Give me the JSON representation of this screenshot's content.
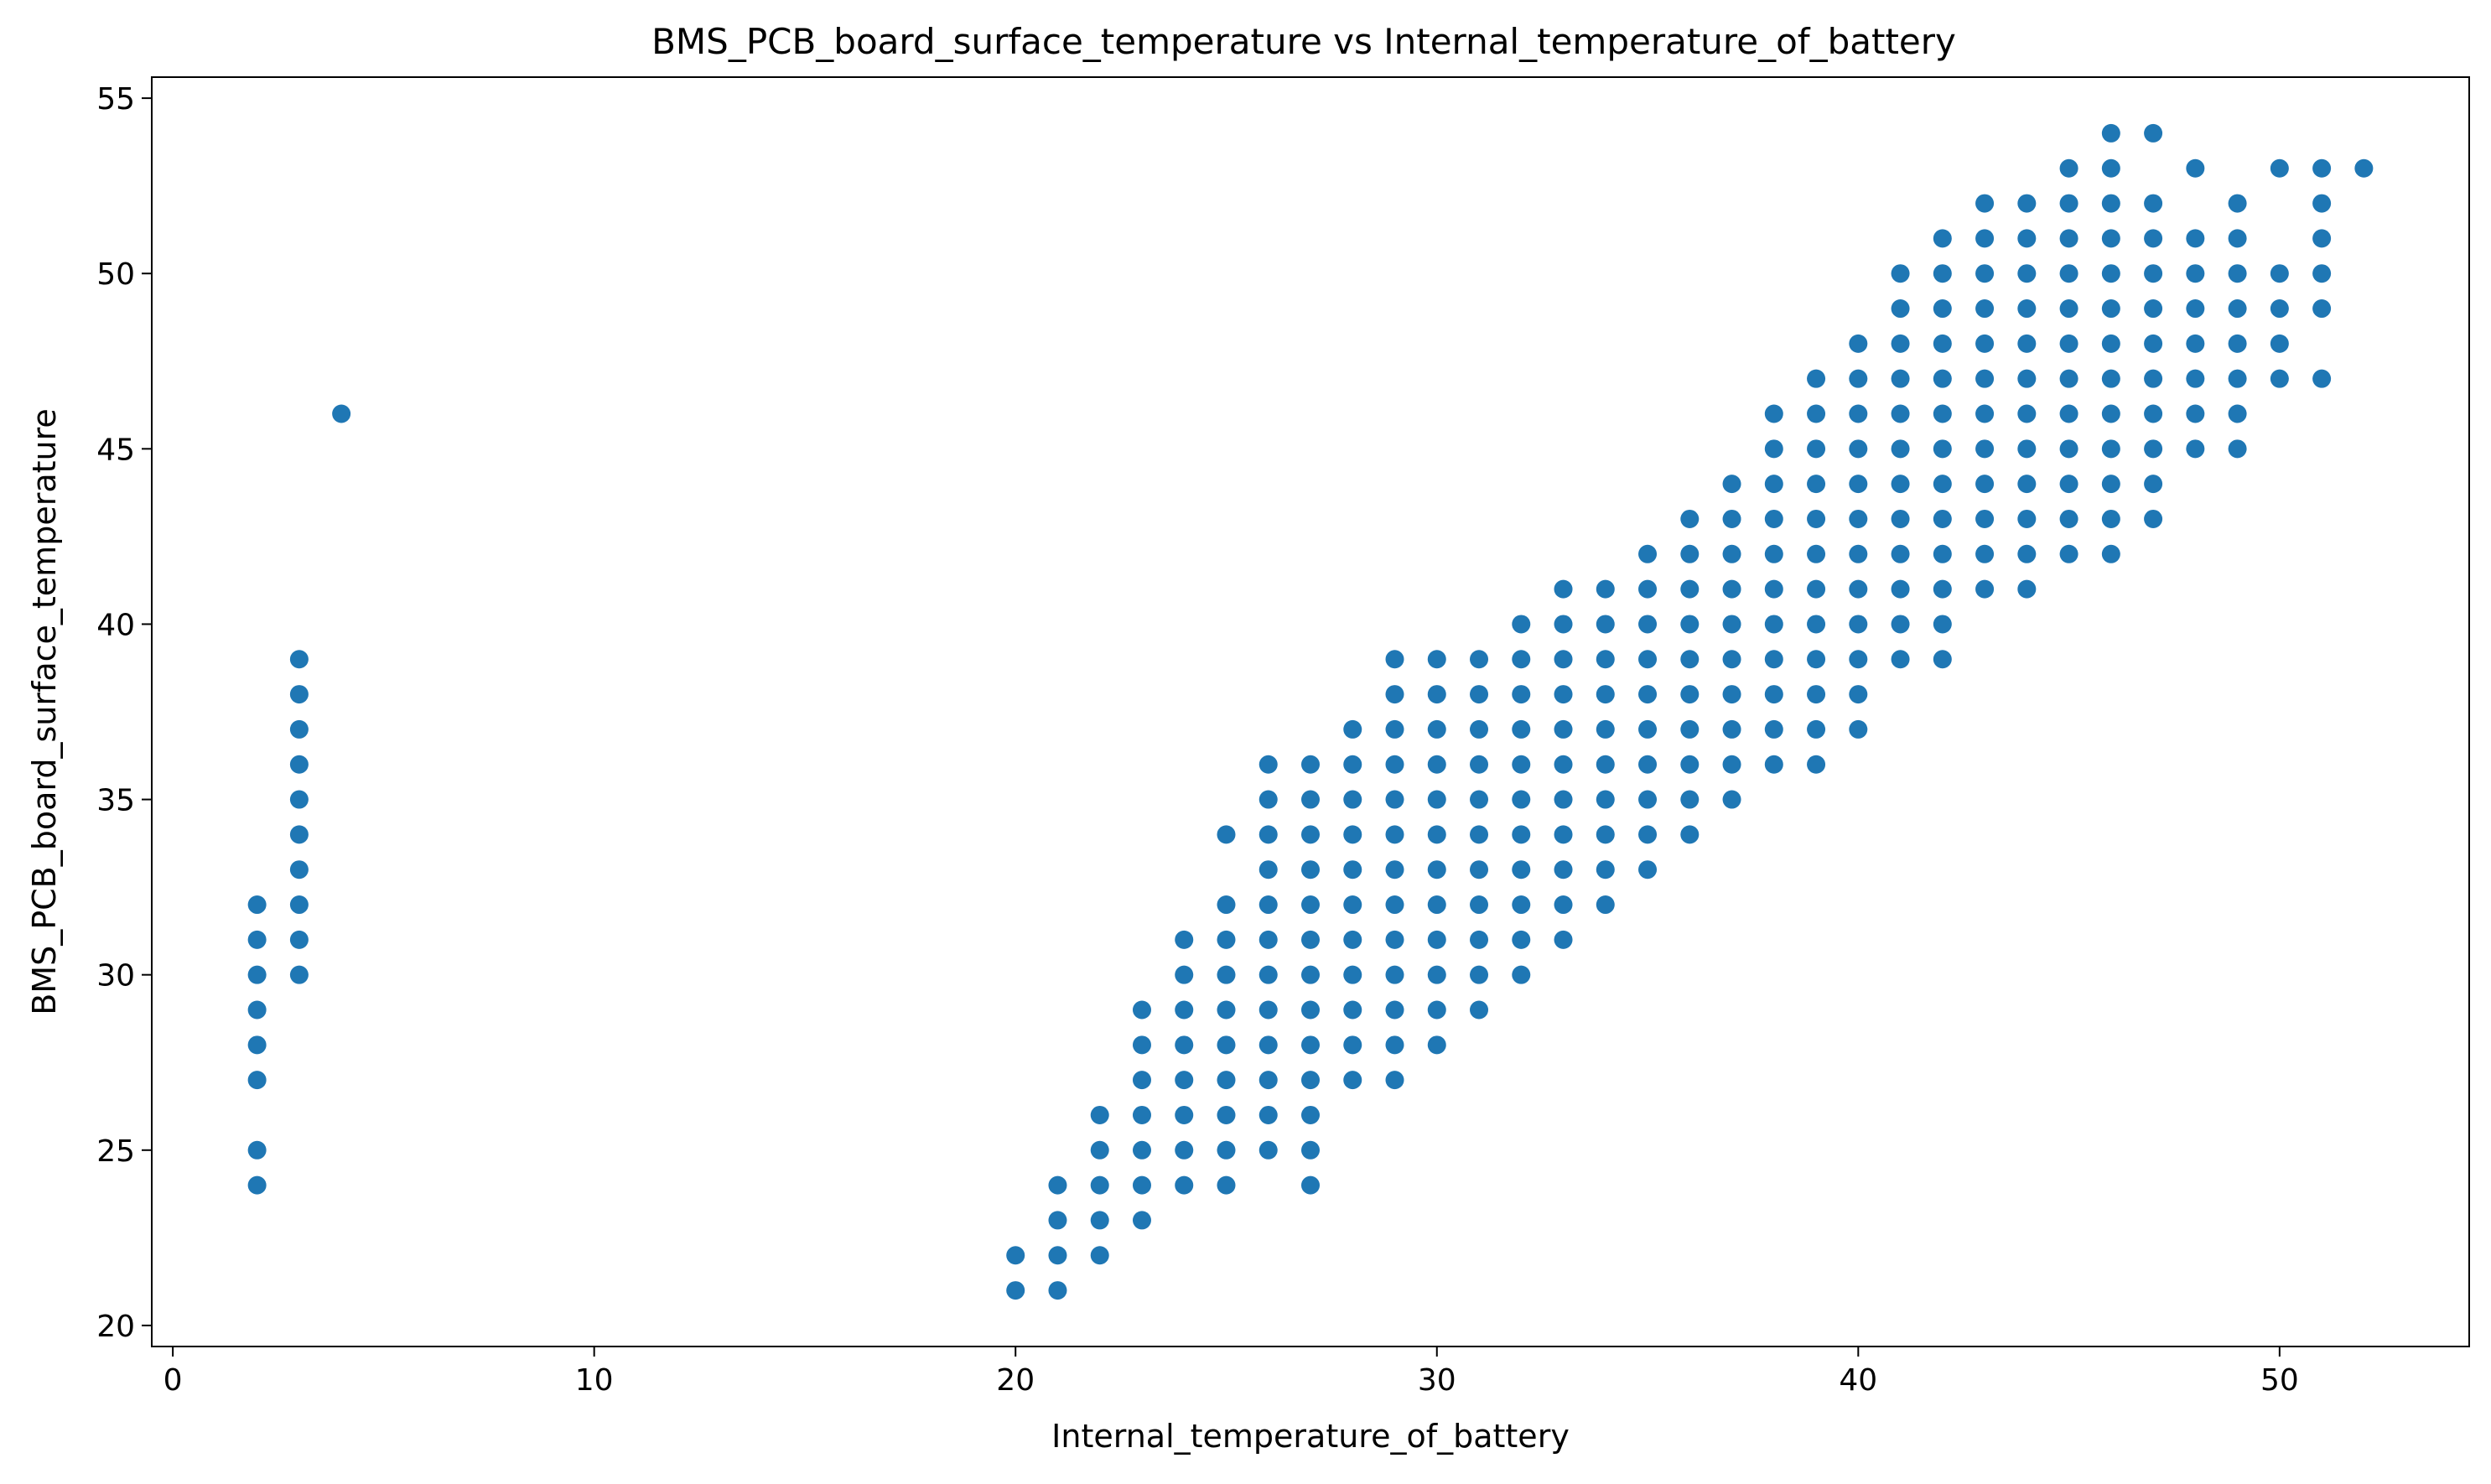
{
  "chart_data": {
    "type": "scatter",
    "title": "BMS_PCB_board_surface_temperature vs Internal_temperature_of_battery",
    "xlabel": "Internal_temperature_of_battery",
    "ylabel": "BMS_PCB_board_surface_temperature",
    "xlim": [
      -0.5,
      54.5
    ],
    "ylim": [
      19.4,
      55.6
    ],
    "x_ticks": [
      0,
      10,
      20,
      30,
      40,
      50
    ],
    "y_ticks": [
      20,
      25,
      30,
      35,
      40,
      45,
      50,
      55
    ],
    "grid": false,
    "marker_color": "#1f77b4",
    "columns": [
      {
        "x": 2,
        "y_values": [
          24,
          25,
          27,
          28,
          29,
          30,
          31,
          32
        ]
      },
      {
        "x": 3,
        "y_values": [
          30,
          31,
          32,
          33,
          34,
          35,
          36,
          37,
          38,
          39
        ]
      },
      {
        "x": 4,
        "y_values": [
          46
        ]
      },
      {
        "x": 20,
        "y_values": [
          21,
          22
        ]
      },
      {
        "x": 21,
        "y_values": [
          21,
          22,
          23,
          24
        ]
      },
      {
        "x": 22,
        "y_values": [
          22,
          23,
          24,
          25,
          26
        ]
      },
      {
        "x": 23,
        "y_values": [
          23,
          24,
          25,
          26,
          27,
          28,
          29
        ]
      },
      {
        "x": 24,
        "y_values": [
          24,
          25,
          26,
          27,
          28,
          29,
          30,
          31
        ]
      },
      {
        "x": 25,
        "y_values": [
          24,
          25,
          26,
          27,
          28,
          29,
          30,
          31,
          32,
          34
        ]
      },
      {
        "x": 26,
        "y_values": [
          25,
          26,
          27,
          28,
          29,
          30,
          31,
          32,
          33,
          34,
          35,
          36
        ]
      },
      {
        "x": 27,
        "y_values": [
          24,
          25,
          26,
          27,
          28,
          29,
          30,
          31,
          32,
          33,
          34,
          35,
          36
        ]
      },
      {
        "x": 28,
        "y_values": [
          27,
          28,
          29,
          30,
          31,
          32,
          33,
          34,
          35,
          36,
          37
        ]
      },
      {
        "x": 29,
        "y_values": [
          27,
          28,
          29,
          30,
          31,
          32,
          33,
          34,
          35,
          36,
          37,
          38,
          39
        ]
      },
      {
        "x": 30,
        "y_values": [
          28,
          29,
          30,
          31,
          32,
          33,
          34,
          35,
          36,
          37,
          38,
          39
        ]
      },
      {
        "x": 31,
        "y_values": [
          29,
          30,
          31,
          32,
          33,
          34,
          35,
          36,
          37,
          38,
          39
        ]
      },
      {
        "x": 32,
        "y_values": [
          30,
          31,
          32,
          33,
          34,
          35,
          36,
          37,
          38,
          39,
          40
        ]
      },
      {
        "x": 33,
        "y_values": [
          31,
          32,
          33,
          34,
          35,
          36,
          37,
          38,
          39,
          40,
          41
        ]
      },
      {
        "x": 34,
        "y_values": [
          32,
          33,
          34,
          35,
          36,
          37,
          38,
          39,
          40,
          41
        ]
      },
      {
        "x": 35,
        "y_values": [
          33,
          34,
          35,
          36,
          37,
          38,
          39,
          40,
          41,
          42
        ]
      },
      {
        "x": 36,
        "y_values": [
          34,
          35,
          36,
          37,
          38,
          39,
          40,
          41,
          42,
          43
        ]
      },
      {
        "x": 37,
        "y_values": [
          35,
          36,
          37,
          38,
          39,
          40,
          41,
          42,
          43,
          44
        ]
      },
      {
        "x": 38,
        "y_values": [
          36,
          37,
          38,
          39,
          40,
          41,
          42,
          43,
          44,
          45,
          46
        ]
      },
      {
        "x": 39,
        "y_values": [
          36,
          37,
          38,
          39,
          40,
          41,
          42,
          43,
          44,
          45,
          46,
          47
        ]
      },
      {
        "x": 40,
        "y_values": [
          37,
          38,
          39,
          40,
          41,
          42,
          43,
          44,
          45,
          46,
          47,
          48
        ]
      },
      {
        "x": 41,
        "y_values": [
          39,
          40,
          41,
          42,
          43,
          44,
          45,
          46,
          47,
          48,
          49,
          50
        ]
      },
      {
        "x": 42,
        "y_values": [
          39,
          40,
          41,
          42,
          43,
          44,
          45,
          46,
          47,
          48,
          49,
          50,
          51
        ]
      },
      {
        "x": 43,
        "y_values": [
          41,
          42,
          43,
          44,
          45,
          46,
          47,
          48,
          49,
          50,
          51,
          52
        ]
      },
      {
        "x": 44,
        "y_values": [
          41,
          42,
          43,
          44,
          45,
          46,
          47,
          48,
          49,
          50,
          51,
          52
        ]
      },
      {
        "x": 45,
        "y_values": [
          42,
          43,
          44,
          45,
          46,
          47,
          48,
          49,
          50,
          51,
          52,
          53
        ]
      },
      {
        "x": 46,
        "y_values": [
          42,
          43,
          44,
          45,
          46,
          47,
          48,
          49,
          50,
          51,
          52,
          53,
          54
        ]
      },
      {
        "x": 47,
        "y_values": [
          43,
          44,
          45,
          46,
          47,
          48,
          49,
          50,
          51,
          52,
          54
        ]
      },
      {
        "x": 48,
        "y_values": [
          45,
          46,
          47,
          48,
          49,
          50,
          51,
          53
        ]
      },
      {
        "x": 49,
        "y_values": [
          45,
          46,
          47,
          48,
          49,
          50,
          51,
          52
        ]
      },
      {
        "x": 50,
        "y_values": [
          47,
          48,
          49,
          50,
          53
        ]
      },
      {
        "x": 51,
        "y_values": [
          47,
          49,
          50,
          51,
          52,
          53
        ]
      },
      {
        "x": 52,
        "y_values": [
          53
        ]
      }
    ]
  }
}
